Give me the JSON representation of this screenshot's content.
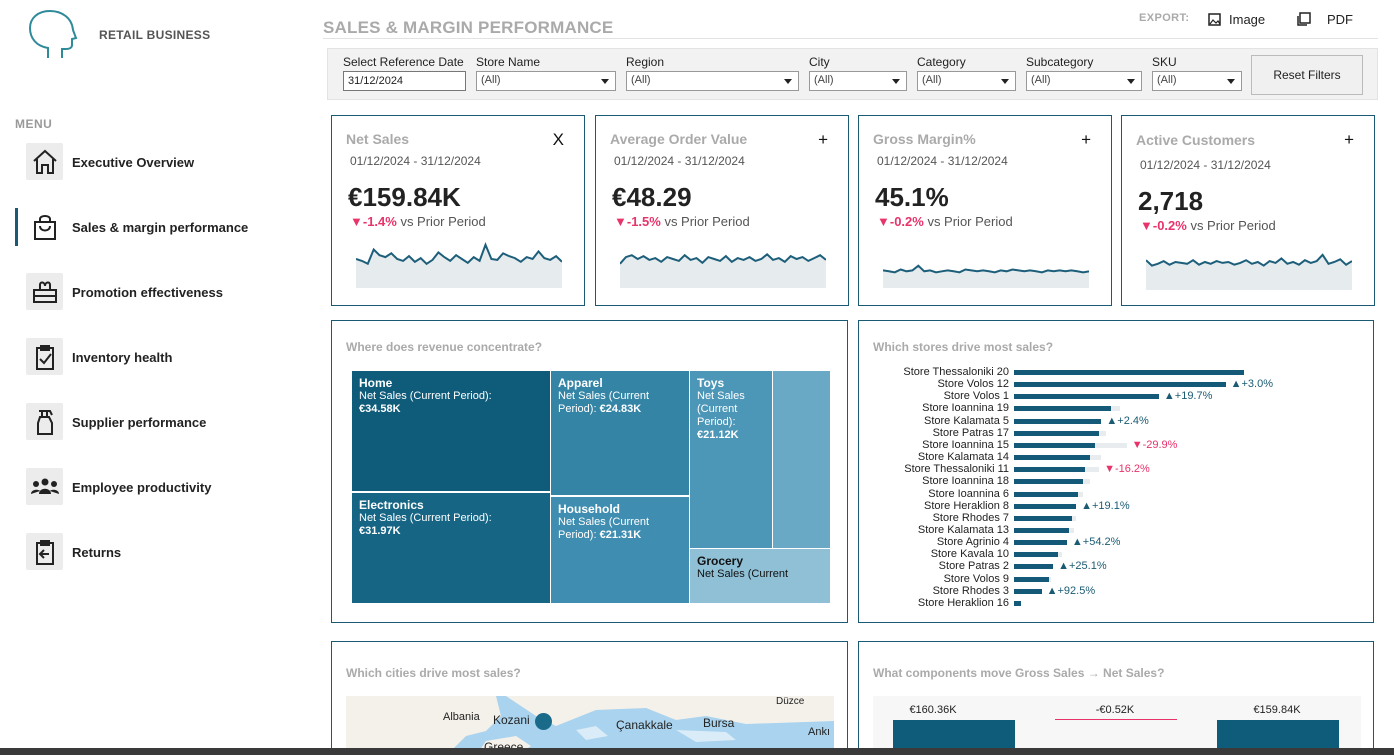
{
  "brand": "RETAIL BUSINESS",
  "menu_title": "MENU",
  "menu": [
    {
      "label": "Executive Overview",
      "icon": "house-icon"
    },
    {
      "label": "Sales & margin performance",
      "icon": "shopping-bag-icon"
    },
    {
      "label": "Promotion effectiveness",
      "icon": "gift-icon"
    },
    {
      "label": "Inventory health",
      "icon": "clipboard-check-icon"
    },
    {
      "label": "Supplier performance",
      "icon": "spray-bottle-icon"
    },
    {
      "label": "Employee productivity",
      "icon": "people-group-icon"
    },
    {
      "label": "Returns",
      "icon": "return-arrow-icon"
    }
  ],
  "active_menu": 1,
  "page_title": "SALES & MARGIN PERFORMANCE",
  "export": {
    "label": "EXPORT:",
    "image": "Image",
    "pdf": "PDF"
  },
  "filters": {
    "reference_date": {
      "label": "Select Reference Date",
      "value": "31/12/2024"
    },
    "store": {
      "label": "Store Name",
      "value": "(All)"
    },
    "region": {
      "label": "Region",
      "value": "(All)"
    },
    "city": {
      "label": "City",
      "value": "(All)"
    },
    "category": {
      "label": "Category",
      "value": "(All)"
    },
    "subcategory": {
      "label": "Subcategory",
      "value": "(All)"
    },
    "sku": {
      "label": "SKU",
      "value": "(All)"
    },
    "reset": "Reset Filters"
  },
  "kpis": [
    {
      "title": "Net Sales",
      "toggle": "X",
      "dates": "01/12/2024 - 31/12/2024",
      "value": "€159.84K",
      "delta": "▼-1.4%",
      "delta_text": " vs Prior Period",
      "spark": [
        60,
        58,
        55,
        70,
        64,
        62,
        66,
        60,
        58,
        63,
        57,
        61,
        55,
        59,
        67,
        62,
        58,
        64,
        60,
        56,
        62,
        58,
        75,
        60,
        59,
        66,
        63,
        61,
        57,
        62,
        60,
        68,
        61,
        59,
        63,
        57
      ]
    },
    {
      "title": "Average Order Value",
      "toggle": "+",
      "dates": "01/12/2024 - 31/12/2024",
      "value": "€48.29",
      "delta": "▼-1.5%",
      "delta_text": " vs Prior Period",
      "spark": [
        55,
        62,
        64,
        60,
        63,
        59,
        61,
        57,
        62,
        60,
        58,
        64,
        59,
        61,
        56,
        62,
        60,
        58,
        63,
        57,
        61,
        59,
        62,
        58,
        60,
        65,
        59,
        61,
        57,
        63,
        60,
        62,
        58,
        61,
        64,
        59
      ]
    },
    {
      "title": "Gross Margin%",
      "toggle": "+",
      "dates": "01/12/2024 - 31/12/2024",
      "value": "45.1%",
      "delta": "▼-0.2%",
      "delta_text": " vs Prior Period",
      "spark": [
        48,
        47,
        46,
        49,
        47,
        48,
        53,
        47,
        48,
        46,
        47,
        48,
        47,
        46,
        49,
        48,
        47,
        48,
        47,
        46,
        48,
        47,
        49,
        48,
        47,
        48,
        47,
        46,
        48,
        47,
        48,
        47,
        48,
        47,
        46,
        47
      ]
    },
    {
      "title": "Active Customers",
      "toggle": "+",
      "dates": "01/12/2024 - 31/12/2024",
      "value": "2,718",
      "delta": "▼-0.2%",
      "delta_text": " vs Prior Period",
      "spark": [
        62,
        56,
        58,
        61,
        57,
        60,
        59,
        58,
        62,
        57,
        60,
        58,
        61,
        59,
        60,
        57,
        59,
        62,
        58,
        60,
        56,
        61,
        59,
        64,
        58,
        60,
        57,
        62,
        59,
        61,
        68,
        58,
        60,
        63,
        57,
        61
      ]
    }
  ],
  "treemap": {
    "title": "Where does revenue concentrate?",
    "series_label": "Net Sales (Current Period):",
    "cells": [
      {
        "name": "Home",
        "value": "€34.58K",
        "color": "#0f5b7a"
      },
      {
        "name": "Electronics",
        "value": "€31.97K",
        "color": "#166585"
      },
      {
        "name": "Apparel",
        "value": "€24.83K",
        "color": "#3484a6"
      },
      {
        "name": "Household",
        "value": "€21.31K",
        "color": "#3f8db0"
      },
      {
        "name": "Toys",
        "value": "€21.12K",
        "color": "#4c96b7"
      },
      {
        "name": "Grocery",
        "value": "Net Sales (Current",
        "color": "#8fc0d6"
      },
      {
        "name": "",
        "value": "",
        "color": "#6aa9c6"
      }
    ]
  },
  "stores": {
    "title": "Which stores drive most sales?",
    "rows": [
      {
        "name": "Store Thessaloniki 20",
        "value": 100,
        "prior": 88,
        "delta": ""
      },
      {
        "name": "Store Volos 12",
        "value": 92,
        "prior": 90,
        "delta": "▲+3.0%",
        "dir": "up"
      },
      {
        "name": "Store Volos 1",
        "value": 63,
        "prior": 52,
        "delta": "▲+19.7%",
        "dir": "up"
      },
      {
        "name": "Store Ioannina 19",
        "value": 42,
        "prior": 46,
        "delta": ""
      },
      {
        "name": "Store Kalamata 5",
        "value": 38,
        "prior": 37,
        "delta": "▲+2.4%",
        "dir": "up"
      },
      {
        "name": "Store Patras 17",
        "value": 37,
        "prior": 40,
        "delta": ""
      },
      {
        "name": "Store Ioannina 15",
        "value": 35,
        "prior": 49,
        "delta": "▼-29.9%",
        "dir": "down"
      },
      {
        "name": "Store Kalamata 14",
        "value": 33,
        "prior": 38,
        "delta": ""
      },
      {
        "name": "Store Thessaloniki 11",
        "value": 31,
        "prior": 37,
        "delta": "▼-16.2%",
        "dir": "down"
      },
      {
        "name": "Store Ioannina 18",
        "value": 30,
        "prior": 33,
        "delta": ""
      },
      {
        "name": "Store Ioannina 6",
        "value": 28,
        "prior": 30,
        "delta": ""
      },
      {
        "name": "Store Heraklion 8",
        "value": 27,
        "prior": 23,
        "delta": "▲+19.1%",
        "dir": "up"
      },
      {
        "name": "Store Rhodes 7",
        "value": 25,
        "prior": 27,
        "delta": ""
      },
      {
        "name": "Store Kalamata 13",
        "value": 24,
        "prior": 26,
        "delta": ""
      },
      {
        "name": "Store Agrinio 4",
        "value": 23,
        "prior": 15,
        "delta": "▲+54.2%",
        "dir": "up"
      },
      {
        "name": "Store Kavala 10",
        "value": 19,
        "prior": 21,
        "delta": ""
      },
      {
        "name": "Store Patras 2",
        "value": 17,
        "prior": 14,
        "delta": "▲+25.1%",
        "dir": "up"
      },
      {
        "name": "Store Volos 9",
        "value": 15,
        "prior": 16,
        "delta": ""
      },
      {
        "name": "Store Rhodes 3",
        "value": 12,
        "prior": 6,
        "delta": "▲+92.5%",
        "dir": "up"
      },
      {
        "name": "Store Heraklion 16",
        "value": 3,
        "prior": 3,
        "delta": ""
      }
    ]
  },
  "cities": {
    "title": "Which cities drive most sales?",
    "labels": [
      "Albania",
      "Kozani",
      "Çanakkale",
      "Bursa",
      "Düzce",
      "Ankı",
      "Greece"
    ]
  },
  "waterfall": {
    "title": "What components move Gross Sales → Net Sales?",
    "labels": [
      "€160.36K",
      "-€0.52K",
      "€159.84K"
    ]
  }
}
